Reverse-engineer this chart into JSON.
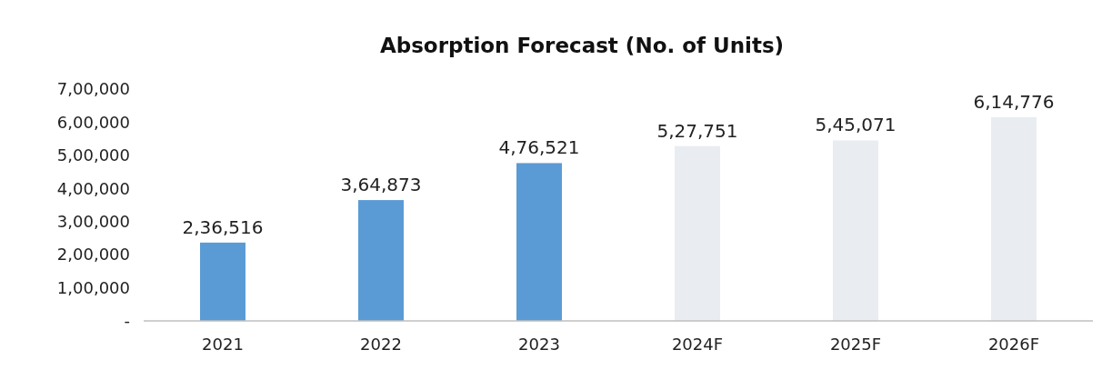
{
  "chart_data": {
    "type": "bar",
    "title": "Absorption Forecast (No. of Units)",
    "categories": [
      "2021",
      "2022",
      "2023",
      "2024F",
      "2025F",
      "2026F"
    ],
    "values": [
      236516,
      364873,
      476521,
      527751,
      545071,
      614776
    ],
    "colors": [
      "#5b9bd5",
      "#5b9bd5",
      "#5b9bd5",
      "#e9ecf1",
      "#e9ecf1",
      "#e9ecf1"
    ],
    "value_labels": [
      "2,36,516",
      "3,64,873",
      "4,76,521",
      "5,27,751",
      "5,45,071",
      "6,14,776"
    ],
    "ylim": [
      0,
      700000
    ],
    "yticks": [
      {
        "value": 0,
        "label": "-"
      },
      {
        "value": 100000,
        "label": "1,00,000"
      },
      {
        "value": 200000,
        "label": "2,00,000"
      },
      {
        "value": 300000,
        "label": "3,00,000"
      },
      {
        "value": 400000,
        "label": "4,00,000"
      },
      {
        "value": 500000,
        "label": "5,00,000"
      },
      {
        "value": 600000,
        "label": "6,00,000"
      },
      {
        "value": 700000,
        "label": "7,00,000"
      }
    ],
    "grid": false
  }
}
